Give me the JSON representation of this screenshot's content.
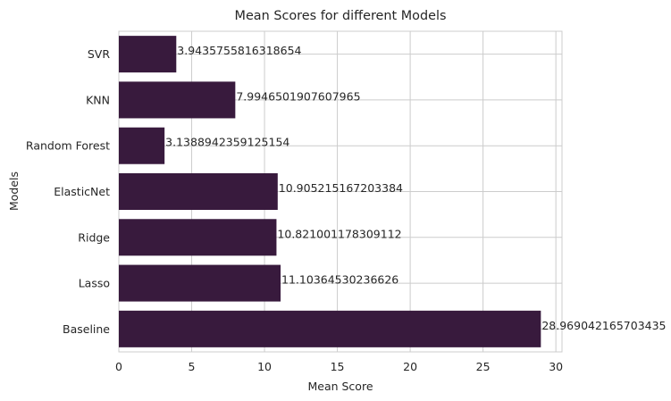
{
  "chart_data": {
    "type": "bar",
    "orientation": "horizontal",
    "title": "Mean Scores for different Models",
    "xlabel": "Mean Score",
    "ylabel": "Models",
    "categories": [
      "Baseline",
      "Lasso",
      "Ridge",
      "ElasticNet",
      "Random Forest",
      "KNN",
      "SVR"
    ],
    "values": [
      28.969042165703435,
      11.10364530236626,
      10.821001178309112,
      10.905215167203384,
      3.1388942359125154,
      7.9946501907607965,
      3.9435755816318654
    ],
    "data_labels": [
      "28.969042165703435",
      "11.10364530236626",
      "10.821001178309112",
      "10.905215167203384",
      "3.1388942359125154",
      "7.9946501907607965",
      "3.9435755816318654"
    ],
    "xlim": [
      0,
      30.42
    ],
    "xticks": [
      0,
      5,
      10,
      15,
      20,
      25,
      30
    ],
    "xtick_labels": [
      "0",
      "5",
      "10",
      "15",
      "20",
      "25",
      "30"
    ],
    "grid": true,
    "bar_color": "#381a3d",
    "grid_color": "#cccccc"
  }
}
